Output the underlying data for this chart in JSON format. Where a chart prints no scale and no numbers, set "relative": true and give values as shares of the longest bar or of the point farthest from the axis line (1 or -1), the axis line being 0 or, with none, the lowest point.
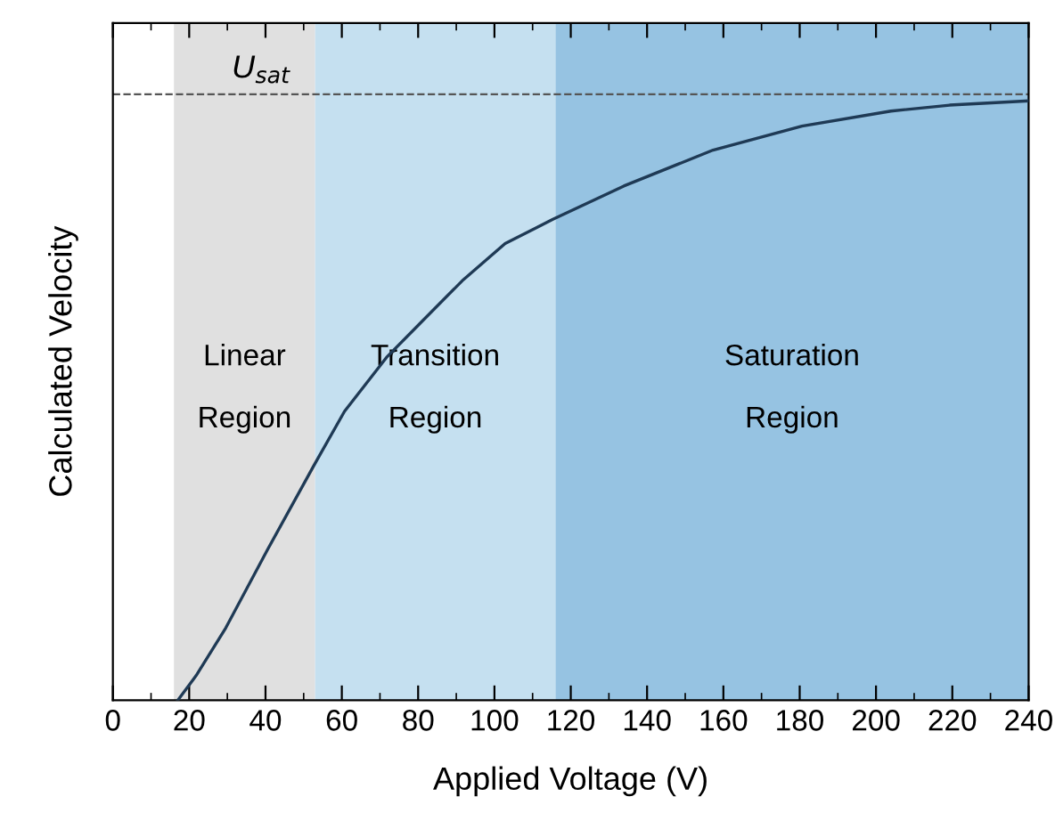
{
  "chart_data": {
    "type": "line",
    "relative": true,
    "xlabel": "Applied Voltage (V)",
    "ylabel": "Calculated Velocity",
    "x": [
      17,
      21.8,
      29.6,
      40.5,
      52.7,
      60.7,
      71.7,
      81,
      91.9,
      102.8,
      115.2,
      133.9,
      157.3,
      180.6,
      203.9,
      219.3,
      240
    ],
    "series": [
      {
        "color": "#1f3a55",
        "values": [
          0,
          0.041,
          0.121,
          0.251,
          0.392,
          0.482,
          0.572,
          0.632,
          0.702,
          0.762,
          0.802,
          0.858,
          0.918,
          0.958,
          0.983,
          0.993,
          1.0
        ]
      }
    ],
    "xlim": [
      0,
      240
    ],
    "xticks": [
      0,
      20,
      40,
      60,
      80,
      100,
      120,
      140,
      160,
      180,
      200,
      220,
      240
    ],
    "bands": [
      {
        "axis": "x",
        "from": 16,
        "to": 53,
        "label": "Linear\nRegion",
        "color": "#e0e0e0"
      },
      {
        "axis": "x",
        "from": 53,
        "to": 116,
        "label": "Transition\nRegion",
        "color": "#c5e0f0"
      },
      {
        "axis": "x",
        "from": 116,
        "to": 240,
        "label": "Saturation\nRegion",
        "color": "#96c3e2"
      }
    ],
    "ref_lines": [
      {
        "axis": "y",
        "value": 1.011,
        "label": "U$_{sat}$",
        "color": "#555555",
        "line_style": "dashed"
      }
    ],
    "line_style": "solid",
    "marker": "none",
    "grid": false,
    "legend": false
  }
}
